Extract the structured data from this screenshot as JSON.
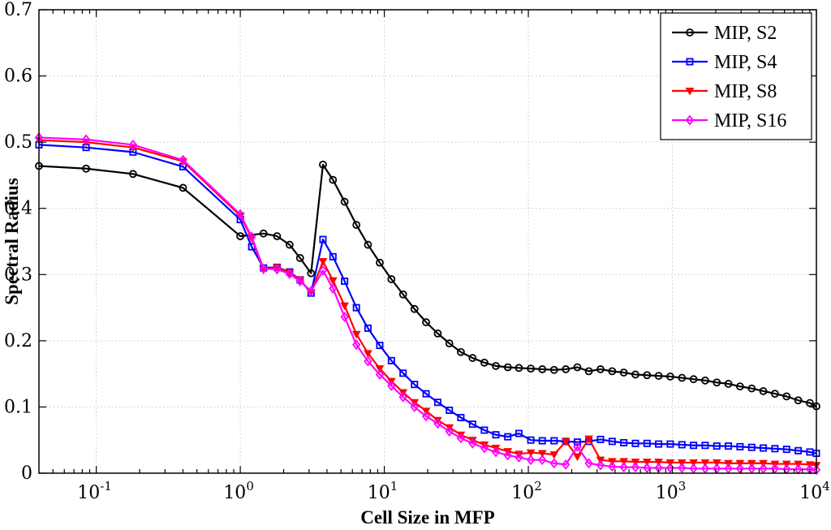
{
  "chart_data": {
    "type": "line",
    "xlabel": "Cell Size in MFP",
    "ylabel": "Spectral Radius",
    "xscale": "log",
    "xlim": [
      0.04,
      10000
    ],
    "ylim": [
      0,
      0.7
    ],
    "grid": true,
    "legend_position": "top-right",
    "x_tick_labels": [
      {
        "base": "10",
        "exp": "-1",
        "value": 0.1
      },
      {
        "base": "10",
        "exp": "0",
        "value": 1
      },
      {
        "base": "10",
        "exp": "1",
        "value": 10
      },
      {
        "base": "10",
        "exp": "2",
        "value": 100
      },
      {
        "base": "10",
        "exp": "3",
        "value": 1000
      },
      {
        "base": "10",
        "exp": "4",
        "value": 10000
      }
    ],
    "y_ticks": [
      "0",
      "0.1",
      "0.2",
      "0.3",
      "0.4",
      "0.5",
      "0.6",
      "0.7"
    ],
    "y_tick_values": [
      0,
      0.1,
      0.2,
      0.3,
      0.4,
      0.5,
      0.6,
      0.7
    ],
    "series": [
      {
        "name": "MIP, S2",
        "color": "#000000",
        "marker": "circle",
        "x": [
          0.04,
          0.085,
          0.18,
          0.4,
          1.0,
          1.45,
          1.8,
          2.2,
          2.6,
          3.1,
          3.75,
          4.4,
          5.3,
          6.4,
          7.7,
          9.3,
          11.2,
          13.5,
          16.2,
          19.5,
          23.5,
          28.3,
          34,
          41,
          49.5,
          59.5,
          72,
          86,
          104,
          125,
          151,
          182,
          219,
          263,
          317,
          382,
          460,
          554,
          667,
          803,
          967,
          1165,
          1403,
          1690,
          2035,
          2450,
          2950,
          3555,
          4280,
          5155,
          6210,
          7480,
          9010,
          10000
        ],
        "y": [
          0.464,
          0.46,
          0.452,
          0.431,
          0.358,
          0.362,
          0.358,
          0.345,
          0.325,
          0.302,
          0.466,
          0.443,
          0.41,
          0.375,
          0.345,
          0.318,
          0.293,
          0.27,
          0.248,
          0.228,
          0.211,
          0.196,
          0.183,
          0.174,
          0.167,
          0.162,
          0.16,
          0.159,
          0.158,
          0.157,
          0.156,
          0.157,
          0.16,
          0.154,
          0.157,
          0.154,
          0.152,
          0.149,
          0.148,
          0.147,
          0.146,
          0.144,
          0.142,
          0.14,
          0.137,
          0.135,
          0.131,
          0.128,
          0.124,
          0.12,
          0.116,
          0.11,
          0.106,
          0.101
        ]
      },
      {
        "name": "MIP, S4",
        "color": "#0000ff",
        "marker": "square",
        "x": [
          0.04,
          0.085,
          0.18,
          0.4,
          1.0,
          1.2,
          1.45,
          1.8,
          2.2,
          2.6,
          3.1,
          3.75,
          4.4,
          5.3,
          6.4,
          7.7,
          9.3,
          11.2,
          13.5,
          16.2,
          19.5,
          23.5,
          28.3,
          34,
          41,
          49.5,
          59.5,
          72,
          86,
          104,
          125,
          151,
          182,
          219,
          263,
          317,
          382,
          460,
          554,
          667,
          803,
          967,
          1165,
          1403,
          1690,
          2035,
          2450,
          2950,
          3555,
          4280,
          5155,
          6210,
          7480,
          9010,
          10000
        ],
        "y": [
          0.496,
          0.492,
          0.485,
          0.463,
          0.383,
          0.342,
          0.31,
          0.311,
          0.304,
          0.292,
          0.272,
          0.353,
          0.327,
          0.29,
          0.25,
          0.219,
          0.193,
          0.17,
          0.151,
          0.134,
          0.12,
          0.107,
          0.095,
          0.084,
          0.074,
          0.065,
          0.058,
          0.055,
          0.06,
          0.05,
          0.049,
          0.049,
          0.048,
          0.047,
          0.048,
          0.051,
          0.048,
          0.046,
          0.045,
          0.045,
          0.044,
          0.044,
          0.043,
          0.042,
          0.042,
          0.041,
          0.041,
          0.04,
          0.039,
          0.038,
          0.037,
          0.036,
          0.034,
          0.032,
          0.03
        ]
      },
      {
        "name": "MIP, S8",
        "color": "#ff0000",
        "marker": "triangle-down",
        "x": [
          0.04,
          0.085,
          0.18,
          0.4,
          1.0,
          1.2,
          1.45,
          1.8,
          2.2,
          2.6,
          3.1,
          3.75,
          4.4,
          5.3,
          6.4,
          7.7,
          9.3,
          11.2,
          13.5,
          16.2,
          19.5,
          23.5,
          28.3,
          34,
          41,
          49.5,
          59.5,
          72,
          86,
          104,
          125,
          151,
          182,
          219,
          263,
          317,
          382,
          460,
          554,
          667,
          803,
          967,
          1165,
          1403,
          1690,
          2035,
          2450,
          2950,
          3555,
          4280,
          5155,
          6210,
          7480,
          9010,
          10000
        ],
        "y": [
          0.503,
          0.5,
          0.492,
          0.471,
          0.389,
          0.355,
          0.307,
          0.311,
          0.303,
          0.292,
          0.273,
          0.32,
          0.291,
          0.253,
          0.21,
          0.181,
          0.158,
          0.139,
          0.122,
          0.107,
          0.094,
          0.08,
          0.069,
          0.058,
          0.05,
          0.043,
          0.038,
          0.033,
          0.029,
          0.031,
          0.03,
          0.028,
          0.048,
          0.025,
          0.052,
          0.02,
          0.018,
          0.018,
          0.017,
          0.017,
          0.017,
          0.016,
          0.016,
          0.016,
          0.016,
          0.016,
          0.015,
          0.015,
          0.015,
          0.015,
          0.014,
          0.014,
          0.014,
          0.013,
          0.012
        ]
      },
      {
        "name": "MIP, S16",
        "color": "#ff00ff",
        "marker": "diamond",
        "x": [
          0.04,
          0.085,
          0.18,
          0.4,
          1.0,
          1.2,
          1.45,
          1.8,
          2.2,
          2.6,
          3.1,
          3.75,
          4.4,
          5.3,
          6.4,
          7.7,
          9.3,
          11.2,
          13.5,
          16.2,
          19.5,
          23.5,
          28.3,
          34,
          41,
          49.5,
          59.5,
          72,
          86,
          104,
          125,
          151,
          182,
          219,
          263,
          317,
          382,
          460,
          554,
          667,
          803,
          967,
          1165,
          1403,
          1690,
          2035,
          2450,
          2950,
          3555,
          4280,
          5155,
          6210,
          7480,
          9010,
          10000
        ],
        "y": [
          0.507,
          0.504,
          0.496,
          0.473,
          0.391,
          0.357,
          0.309,
          0.308,
          0.301,
          0.29,
          0.275,
          0.306,
          0.279,
          0.236,
          0.194,
          0.169,
          0.149,
          0.132,
          0.115,
          0.1,
          0.086,
          0.075,
          0.063,
          0.053,
          0.045,
          0.038,
          0.032,
          0.027,
          0.024,
          0.02,
          0.02,
          0.015,
          0.013,
          0.04,
          0.015,
          0.012,
          0.01,
          0.009,
          0.009,
          0.008,
          0.008,
          0.008,
          0.008,
          0.007,
          0.007,
          0.007,
          0.007,
          0.007,
          0.007,
          0.007,
          0.007,
          0.006,
          0.006,
          0.006,
          0.005
        ]
      }
    ]
  }
}
